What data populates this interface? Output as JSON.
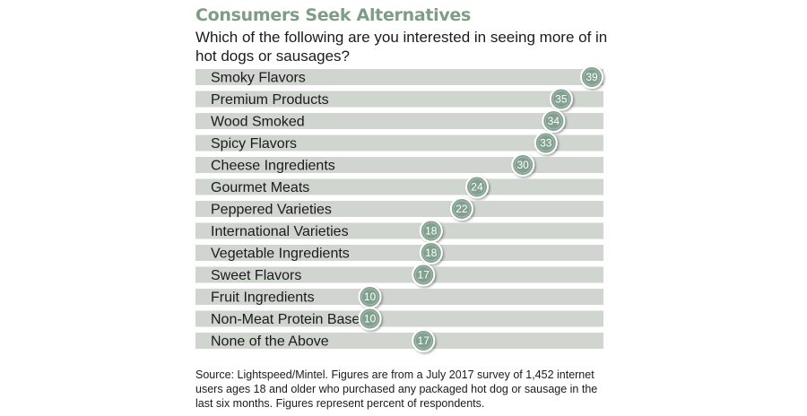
{
  "colors": {
    "title": "#7f9c87",
    "bar": "#d0d5d0",
    "bubble": "#82a08f",
    "bubble_ring": "#ffffff",
    "bubble_text": "#ffffff",
    "label": "#1b1b1b"
  },
  "header": {
    "title": "Consumers Seek Alternatives",
    "question": "Which of the following are you interested in seeing more of in hot dogs or sausages?"
  },
  "chart_data": {
    "type": "bar",
    "categories": [
      "Smoky Flavors",
      "Premium Products",
      "Wood Smoked",
      "Spicy Flavors",
      "Cheese Ingredients",
      "Gourmet Meats",
      "Peppered Varieties",
      "International Varieties",
      "Vegetable Ingredients",
      "Sweet Flavors",
      "Fruit Ingredients",
      "Non-Meat Protein Base",
      "None of the Above"
    ],
    "values": [
      39,
      35,
      34,
      33,
      30,
      24,
      22,
      18,
      18,
      17,
      10,
      10,
      17
    ],
    "title": "Consumers Seek Alternatives",
    "xlabel": "",
    "ylabel": "",
    "unit": "percent of respondents",
    "grid": false
  },
  "footer": {
    "source": "Source: Lightspeed/Mintel. Figures are from a July 2017 survey of 1,452 internet users ages 18 and older who purchased any packaged hot dog or sausage in the last six months. Figures represent percent of respondents."
  }
}
